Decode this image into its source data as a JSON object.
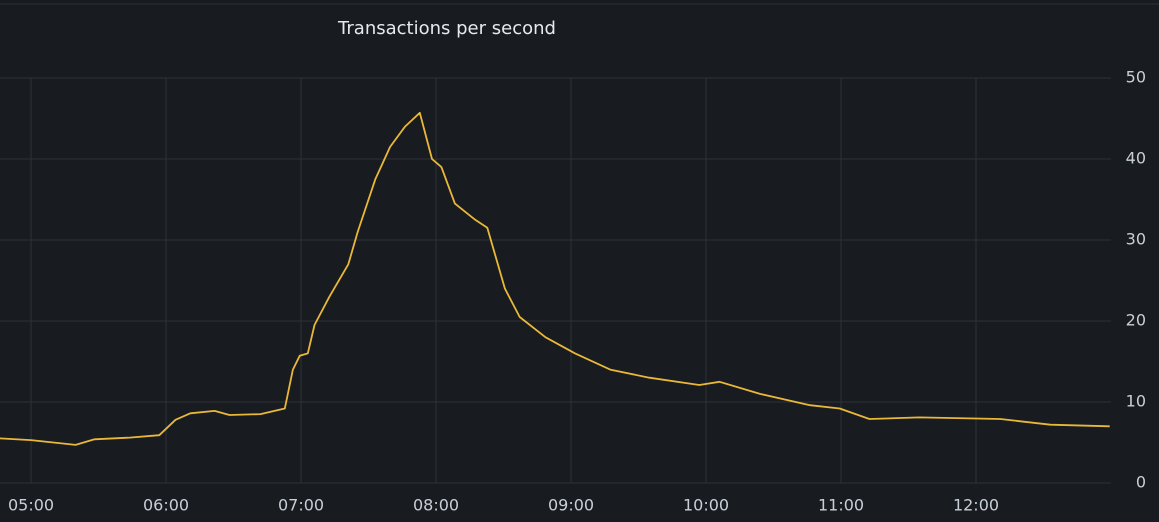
{
  "chart_data": {
    "type": "line",
    "title": "Transactions per second",
    "x": [
      4.77,
      5.0,
      5.33,
      5.47,
      5.73,
      5.95,
      6.07,
      6.18,
      6.36,
      6.47,
      6.7,
      6.88,
      6.94,
      6.99,
      7.05,
      7.1,
      7.21,
      7.35,
      7.42,
      7.55,
      7.66,
      7.77,
      7.88,
      7.97,
      8.04,
      8.14,
      8.29,
      8.38,
      8.51,
      8.62,
      8.81,
      9.03,
      9.29,
      9.58,
      9.95,
      10.1,
      10.4,
      10.77,
      10.99,
      11.21,
      11.58,
      12.18,
      12.55,
      12.99
    ],
    "series": [
      {
        "name": "Transactions per second",
        "color": "#eab839",
        "values": [
          5.5,
          5.3,
          4.7,
          5.4,
          5.6,
          5.9,
          7.8,
          8.6,
          8.9,
          8.4,
          8.5,
          9.2,
          14,
          15.7,
          16,
          19.5,
          23,
          27,
          31,
          37.5,
          41.5,
          44,
          45.7,
          40,
          39,
          34.5,
          32.5,
          31.5,
          24,
          20.5,
          18,
          16,
          14,
          13,
          12.1,
          12.5,
          11,
          9.6,
          9.2,
          7.9,
          8.1,
          7.9,
          7.2,
          7.0
        ]
      }
    ],
    "xlim": [
      4.77,
      13.0
    ],
    "xticks": [
      {
        "value": 5,
        "label": "05:00"
      },
      {
        "value": 6,
        "label": "06:00"
      },
      {
        "value": 7,
        "label": "07:00"
      },
      {
        "value": 8,
        "label": "08:00"
      },
      {
        "value": 9,
        "label": "09:00"
      },
      {
        "value": 10,
        "label": "10:00"
      },
      {
        "value": 11,
        "label": "11:00"
      },
      {
        "value": 12,
        "label": "12:00"
      }
    ],
    "ylim": [
      0,
      50
    ],
    "yticks": [
      0,
      10,
      20,
      30,
      40,
      50
    ],
    "grid": true
  }
}
